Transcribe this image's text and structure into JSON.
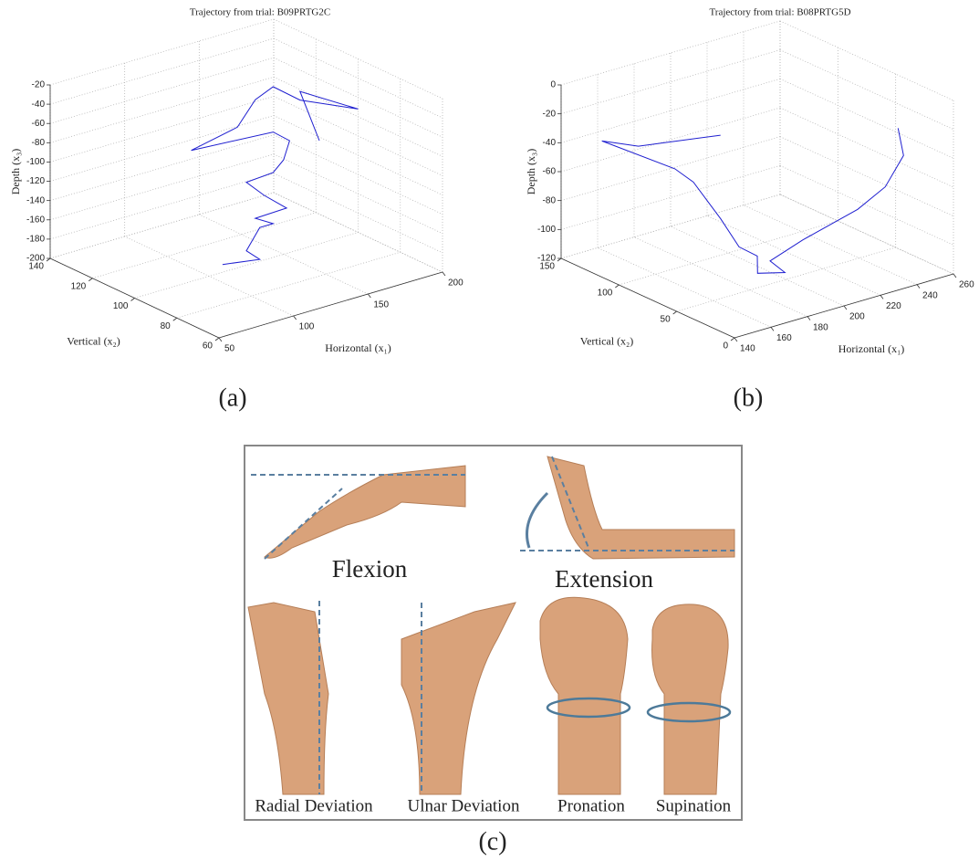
{
  "chart_data": [
    {
      "type": "line3d",
      "title": "Trajectory from trial: B09PRTG2C",
      "xlabel": "Horizontal (x₁)",
      "ylabel": "Vertical (x₂)",
      "zlabel": "Depth (x₃)",
      "color": "#1f1fd0",
      "grid": true,
      "xlim": [
        50,
        200
      ],
      "ylim": [
        60,
        140
      ],
      "zlim": [
        -200,
        -20
      ],
      "xticks": [
        50,
        100,
        150,
        200
      ],
      "yticks": [
        60,
        80,
        100,
        120,
        140
      ],
      "zticks": [
        -200,
        -180,
        -160,
        -140,
        -120,
        -100,
        -80,
        -60,
        -40,
        -20
      ],
      "x": [
        109,
        134,
        125,
        134,
        143,
        131,
        152,
        137,
        125,
        143,
        150,
        154,
        143,
        88,
        119,
        131,
        143,
        161,
        200,
        161,
        174
      ],
      "y": [
        100,
        100,
        100,
        100,
        100,
        100,
        100,
        100,
        100,
        100,
        100,
        100,
        100,
        100,
        100,
        100,
        100,
        100,
        100,
        100,
        100
      ],
      "z": [
        -192,
        -198,
        -185,
        -165,
        -165,
        -154,
        -153,
        -133,
        -114,
        -112,
        -102,
        -84,
        -70,
        -64,
        -54,
        -31,
        -23,
        -45,
        -72,
        -36,
        -93
      ]
    },
    {
      "type": "line3d",
      "title": "Trajectory from trial: B08PRTG5D",
      "xlabel": "Horizontal (x₁)",
      "ylabel": "Vertical (x₂)",
      "zlabel": "Depth (x₃)",
      "color": "#1f1fd0",
      "grid": true,
      "xlim": [
        140,
        260
      ],
      "ylim": [
        0,
        150
      ],
      "zlim": [
        -120,
        0
      ],
      "xticks": [
        140,
        160,
        180,
        200,
        220,
        240,
        260
      ],
      "yticks": [
        0,
        50,
        100,
        150
      ],
      "zticks": [
        -120,
        -100,
        -80,
        -60,
        -40,
        -20,
        0
      ],
      "x": [
        221,
        176,
        156,
        196,
        165,
        180,
        190,
        200,
        178,
        193,
        207,
        225,
        255,
        248,
        258,
        255
      ],
      "y": [
        140,
        140,
        140,
        140,
        75,
        75,
        75,
        75,
        40,
        40,
        75,
        75,
        75,
        40,
        40,
        40
      ],
      "z": [
        -61,
        -52,
        -41,
        -75,
        -49,
        -80,
        -103,
        -113,
        -104,
        -109,
        -119,
        -111,
        -101,
        -70,
        -52,
        -32
      ]
    }
  ],
  "panel_labels": [
    "(a)",
    "(b)",
    "(c)"
  ],
  "gestures": {
    "flexion": "Flexion",
    "extension": "Extension",
    "radial": "Radial Deviation",
    "ulnar": "Ulnar Deviation",
    "pronation": "Pronation",
    "supination": "Supination"
  }
}
